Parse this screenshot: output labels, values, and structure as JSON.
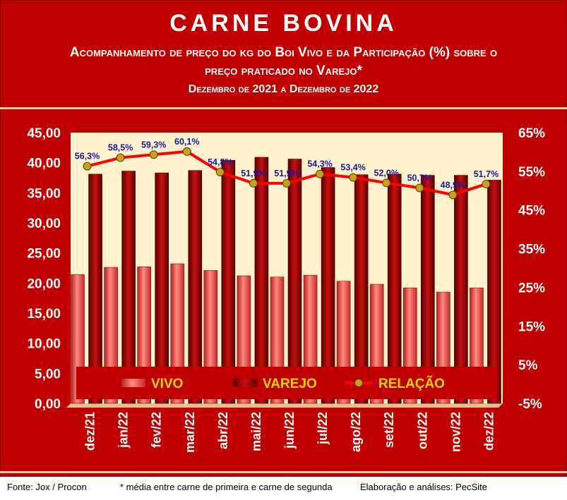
{
  "header": {
    "title": "CARNE BOVINA",
    "subtitle_line1": "Acompanhamento de preço do kg do Boi Vivo e da Participação (%) sobre o",
    "subtitle_line2": "preço praticado no Varejo*",
    "period": "Dezembro de 2021 a Dezembro de 2022"
  },
  "footer": {
    "source": "Fonte: Jox / Procon",
    "note": "* média entre carne de primeira e carne de segunda",
    "credit": "Elaboração e análises: PecSite"
  },
  "colors": {
    "frame": "#c00000",
    "plot_bg": "#fff2cc",
    "vivo": "#f05a5a",
    "varejo": "#9e0000",
    "relacao_line": "#ff0000",
    "relacao_marker": "#c8a020",
    "label": "#1a1aa0",
    "legend_text": "#ffd700"
  },
  "chart_data": {
    "type": "bar",
    "categories": [
      "dez/21",
      "jan/22",
      "fev/22",
      "mar/22",
      "abr/22",
      "mai/22",
      "jun/22",
      "jul/22",
      "ago/22",
      "set/22",
      "out/22",
      "nov/22",
      "dez/22"
    ],
    "series": [
      {
        "name": "VIVO",
        "axis": "left",
        "values": [
          21.4,
          22.6,
          22.7,
          23.2,
          22.1,
          21.2,
          21.0,
          21.3,
          20.3,
          19.8,
          19.2,
          18.5,
          19.2
        ]
      },
      {
        "name": "VAREJO",
        "axis": "left",
        "values": [
          38.1,
          38.6,
          38.3,
          38.7,
          40.4,
          40.9,
          40.6,
          39.2,
          38.0,
          38.1,
          37.9,
          37.9,
          37.1
        ]
      },
      {
        "name": "RELAÇÃO",
        "type": "line",
        "axis": "right",
        "values": [
          56.3,
          58.5,
          59.3,
          60.1,
          54.8,
          51.9,
          51.9,
          54.3,
          53.4,
          52.0,
          50.7,
          48.9,
          51.7
        ],
        "labels": [
          "56,3%",
          "58,5%",
          "59,3%",
          "60,1%",
          "54,8%",
          "51,9%",
          "51,9%",
          "54,3%",
          "53,4%",
          "52,0%",
          "50,7%",
          "48,9%",
          "51,7%"
        ]
      }
    ],
    "y_left": {
      "min": 0,
      "max": 45,
      "ticks": [
        "0,00",
        "5,00",
        "10,00",
        "15,00",
        "20,00",
        "25,00",
        "30,00",
        "35,00",
        "40,00",
        "45,00"
      ]
    },
    "y_right": {
      "min": -5,
      "max": 65,
      "ticks": [
        "-5%",
        "5%",
        "15%",
        "25%",
        "35%",
        "45%",
        "55%",
        "65%"
      ]
    },
    "legend": {
      "placement": "bottom-inside",
      "items": [
        "VIVO",
        "VAREJO",
        "RELAÇÃO"
      ]
    }
  }
}
